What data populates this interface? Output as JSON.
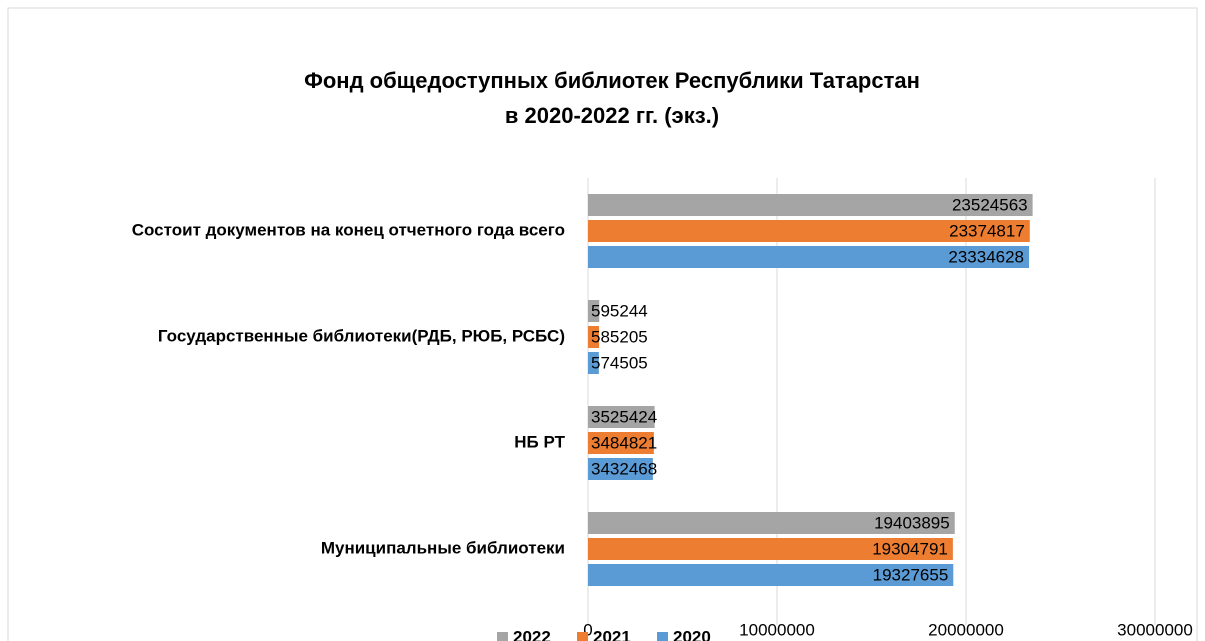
{
  "chart_data": {
    "type": "bar",
    "orientation": "horizontal",
    "title": [
      "Фонд общедоступных библиотек Республики Татарстан",
      "в 2020-2022 гг. (экз.)"
    ],
    "categories": [
      "Состоит документов на конец отчетного года всего",
      "Государственные библиотеки(РДБ, РЮБ, РСБС)",
      "НБ РТ",
      "Муниципальные библиотеки"
    ],
    "series": [
      {
        "name": "2022",
        "color": "#a5a5a5",
        "values": [
          23524563,
          595244,
          3525424,
          19403895
        ]
      },
      {
        "name": "2021",
        "color": "#ed7d31",
        "values": [
          23374817,
          585205,
          3484821,
          19304791
        ]
      },
      {
        "name": "2020",
        "color": "#5b9bd5",
        "values": [
          23334628,
          574505,
          3432468,
          19327655
        ]
      }
    ],
    "xlim": [
      0,
      30000000
    ],
    "xticks": [
      0,
      10000000,
      20000000,
      30000000
    ],
    "grid": true,
    "legend": "bottom"
  }
}
